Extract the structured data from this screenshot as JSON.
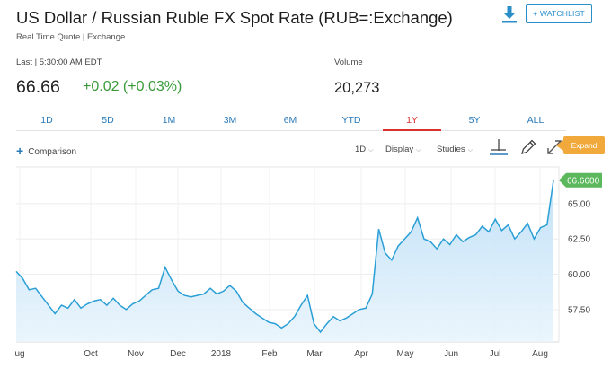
{
  "header": {
    "title": "US Dollar / Russian Ruble FX Spot Rate (RUB=:Exchange)",
    "subtitle": "Real Time Quote | Exchange",
    "watchlist_label": "+ WATCHLIST",
    "download_icon": "download-icon"
  },
  "quote": {
    "last_label": "Last | 5:30:00 AM EDT",
    "price": "66.66",
    "change": "+0.02 (+0.03%)",
    "change_color": "#3a9a3a",
    "volume_label": "Volume",
    "volume": "20,273"
  },
  "ranges": {
    "tabs": [
      "1D",
      "5D",
      "1M",
      "3M",
      "6M",
      "YTD",
      "1Y",
      "5Y",
      "ALL"
    ],
    "active": "1Y",
    "active_color": "#d9302c"
  },
  "toolbar": {
    "comparison_label": "Comparison",
    "interval_label": "1D",
    "display_label": "Display",
    "studies_label": "Studies",
    "expand_label": "Expand"
  },
  "chart_data": {
    "type": "area",
    "x_tick_labels": [
      "ug",
      "Oct",
      "Nov",
      "Dec",
      "2018",
      "Feb",
      "Mar",
      "Apr",
      "May",
      "Jun",
      "Jul",
      "Aug"
    ],
    "y_tick_labels": [
      "57.50",
      "60.00",
      "62.50",
      "65.00"
    ],
    "y_ticks": [
      57.5,
      60,
      62.5,
      65
    ],
    "ylim": [
      55.2,
      67.6
    ],
    "last_value_label": "66.6600",
    "last_value": 66.66,
    "line_color": "#2a9fd6",
    "label_bg_color": "#5cb85c",
    "values": [
      60.2,
      59.7,
      58.9,
      59.0,
      58.4,
      57.8,
      57.2,
      57.8,
      57.6,
      58.2,
      57.6,
      57.9,
      58.1,
      58.2,
      57.8,
      58.3,
      57.8,
      57.5,
      57.9,
      58.1,
      58.5,
      58.9,
      59.0,
      60.5,
      59.6,
      58.8,
      58.5,
      58.4,
      58.5,
      58.6,
      59.0,
      58.6,
      58.8,
      59.2,
      58.8,
      58.0,
      57.6,
      57.2,
      56.9,
      56.6,
      56.5,
      56.2,
      56.5,
      57.0,
      57.8,
      58.5,
      56.5,
      55.9,
      56.5,
      57.0,
      56.7,
      56.9,
      57.2,
      57.5,
      57.6,
      58.6,
      63.2,
      61.5,
      61.0,
      62.0,
      62.5,
      63.0,
      64.0,
      62.5,
      62.3,
      61.8,
      62.5,
      62.1,
      62.8,
      62.3,
      62.6,
      62.8,
      63.4,
      63.0,
      63.9,
      63.1,
      63.5,
      62.5,
      63.0,
      63.6,
      62.5,
      63.3,
      63.5,
      66.66
    ]
  }
}
